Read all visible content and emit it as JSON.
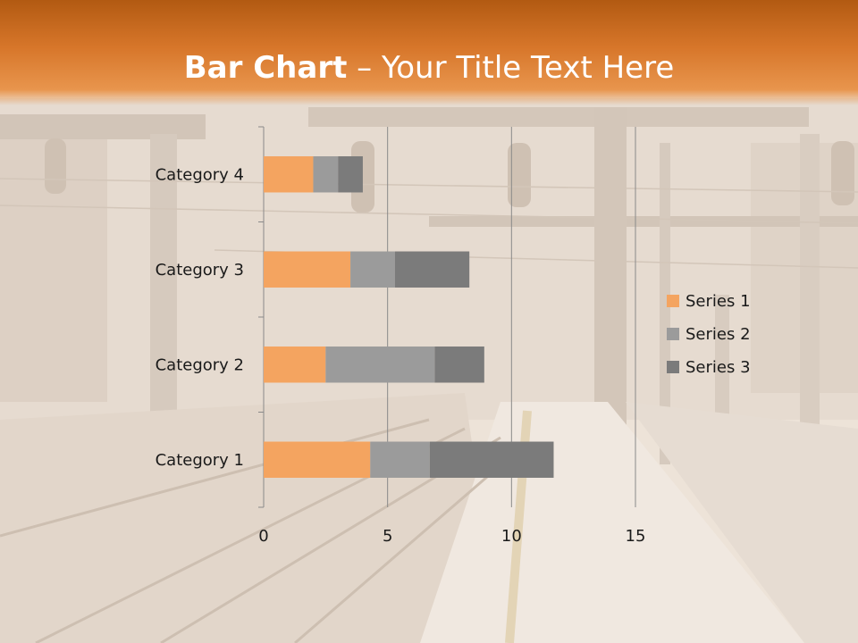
{
  "slide": {
    "title_bold": "Bar Chart",
    "title_dash": " – ",
    "title_rest": "Your Title Text Here"
  },
  "chart_data": {
    "type": "bar",
    "orientation": "horizontal",
    "stacked": true,
    "categories": [
      "Category 1",
      "Category 2",
      "Category 3",
      "Category 4"
    ],
    "series": [
      {
        "name": "Series 1",
        "values": [
          4.3,
          2.5,
          3.5,
          2.0
        ],
        "color": "#f4a460"
      },
      {
        "name": "Series 2",
        "values": [
          2.4,
          4.4,
          1.8,
          1.0
        ],
        "color": "#9b9b9b"
      },
      {
        "name": "Series 3",
        "values": [
          5.0,
          2.0,
          3.0,
          1.0
        ],
        "color": "#7b7b7b"
      }
    ],
    "xlim": [
      0,
      15
    ],
    "xticks": [
      "0",
      "5",
      "10",
      "15"
    ],
    "grid": "vertical",
    "legend": "right"
  }
}
